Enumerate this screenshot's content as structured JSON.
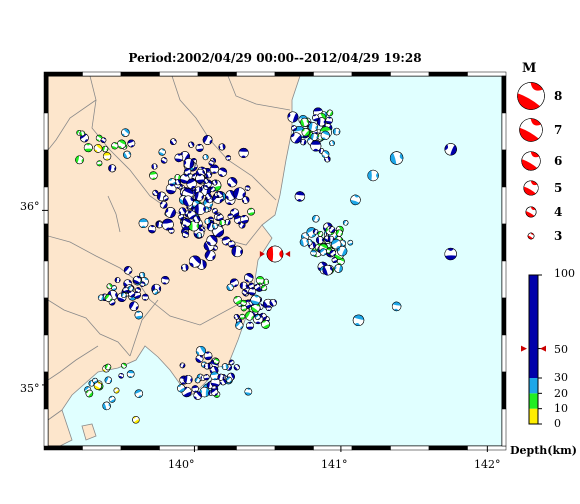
{
  "title": "Period:2002/04/29 00:00--2012/04/29 19:28",
  "x_ticks": [
    "140°",
    "141°",
    "142°"
  ],
  "y_ticks": [
    "36°",
    "35°"
  ],
  "colors": {
    "ocean": "#e0ffff",
    "land": "#fde6cc",
    "boundary": "#8a8a8a",
    "frame": "#000000",
    "mainshock": "#ff0000",
    "depth_0_10": "#ffee00",
    "depth_10_20": "#22ee22",
    "depth_20_30": "#1ea7e8",
    "depth_30_100": "#0000aa"
  },
  "magnitude_legend": {
    "heading": "M",
    "items": [
      {
        "label": "8",
        "m": 8
      },
      {
        "label": "7",
        "m": 7
      },
      {
        "label": "6",
        "m": 6
      },
      {
        "label": "5",
        "m": 5
      },
      {
        "label": "4",
        "m": 4
      },
      {
        "label": "3",
        "m": 3
      }
    ]
  },
  "depth_colorbar": {
    "title": "Depth(km)",
    "ticks": [
      {
        "label": "100",
        "depth": 100
      },
      {
        "label": "50",
        "depth": 50
      },
      {
        "label": "30",
        "depth": 30
      },
      {
        "label": "20",
        "depth": 20
      },
      {
        "label": "10",
        "depth": 10
      },
      {
        "label": "0",
        "depth": 0
      }
    ],
    "marker_depth": 50
  },
  "events": [
    {
      "lon": 140.55,
      "lat": 35.75,
      "m": 5.3,
      "d": 50,
      "main": true
    },
    {
      "lon": 141.75,
      "lat": 36.35,
      "m": 4.4,
      "d": 50
    },
    {
      "lon": 141.75,
      "lat": 35.75,
      "m": 4.4,
      "d": 50
    },
    {
      "lon": 141.38,
      "lat": 36.3,
      "m": 4.6,
      "d": 25
    },
    {
      "lon": 141.22,
      "lat": 36.2,
      "m": 4.2,
      "d": 25
    },
    {
      "lon": 141.12,
      "lat": 35.37,
      "m": 4.2,
      "d": 25
    },
    {
      "lon": 141.38,
      "lat": 35.45,
      "m": 3.8,
      "d": 25
    },
    {
      "lon": 141.1,
      "lat": 36.06,
      "m": 4.0,
      "d": 25
    },
    {
      "lon": 140.72,
      "lat": 36.08,
      "m": 4.0,
      "d": 50
    },
    {
      "lon": 139.72,
      "lat": 36.2,
      "m": 3.6,
      "d": 15
    },
    {
      "lon": 139.62,
      "lat": 35.4,
      "m": 3.6,
      "d": 30
    },
    {
      "lon": 139.8,
      "lat": 35.6,
      "m": 3.6,
      "d": 50
    },
    {
      "lon": 139.62,
      "lat": 34.95,
      "m": 3.6,
      "d": 30
    },
    {
      "lon": 139.4,
      "lat": 34.88,
      "m": 3.6,
      "d": 25
    },
    {
      "lon": 139.6,
      "lat": 34.8,
      "m": 3.4,
      "d": 5
    }
  ],
  "event_clusters": [
    {
      "lon": 140.05,
      "lat": 36.05,
      "rlon": 0.42,
      "rlat": 0.45,
      "n": 150,
      "m": [
        3.0,
        4.4
      ],
      "mix": {
        "d30_100": 0.8,
        "d20_30": 0.15,
        "d10_20": 0.05,
        "d0_10": 0.0
      }
    },
    {
      "lon": 140.85,
      "lat": 36.45,
      "rlon": 0.25,
      "rlat": 0.18,
      "n": 45,
      "m": [
        3.0,
        4.4
      ],
      "mix": {
        "d30_100": 0.55,
        "d20_30": 0.3,
        "d10_20": 0.15,
        "d0_10": 0.0
      }
    },
    {
      "lon": 140.95,
      "lat": 35.78,
      "rlon": 0.24,
      "rlat": 0.2,
      "n": 55,
      "m": [
        3.0,
        4.2
      ],
      "mix": {
        "d30_100": 0.35,
        "d20_30": 0.35,
        "d10_20": 0.3,
        "d0_10": 0.0
      }
    },
    {
      "lon": 140.38,
      "lat": 35.45,
      "rlon": 0.22,
      "rlat": 0.22,
      "n": 40,
      "m": [
        3.0,
        4.0
      ],
      "mix": {
        "d30_100": 0.6,
        "d20_30": 0.25,
        "d10_20": 0.15,
        "d0_10": 0.0
      }
    },
    {
      "lon": 140.1,
      "lat": 35.05,
      "rlon": 0.32,
      "rlat": 0.22,
      "n": 45,
      "m": [
        3.0,
        4.0
      ],
      "mix": {
        "d30_100": 0.75,
        "d20_30": 0.2,
        "d10_20": 0.05,
        "d0_10": 0.0
      }
    },
    {
      "lon": 139.55,
      "lat": 35.55,
      "rlon": 0.3,
      "rlat": 0.15,
      "n": 30,
      "m": [
        3.0,
        4.0
      ],
      "mix": {
        "d30_100": 0.4,
        "d20_30": 0.4,
        "d10_20": 0.2,
        "d0_10": 0.0
      }
    },
    {
      "lon": 139.4,
      "lat": 36.35,
      "rlon": 0.3,
      "rlat": 0.2,
      "n": 18,
      "m": [
        3.0,
        3.8
      ],
      "mix": {
        "d30_100": 0.2,
        "d20_30": 0.2,
        "d10_20": 0.3,
        "d0_10": 0.3
      }
    },
    {
      "lon": 139.4,
      "lat": 35.0,
      "rlon": 0.25,
      "rlat": 0.15,
      "n": 16,
      "m": [
        3.0,
        3.6
      ],
      "mix": {
        "d30_100": 0.2,
        "d20_30": 0.25,
        "d10_20": 0.3,
        "d0_10": 0.25
      }
    }
  ],
  "map_extent": {
    "lon": [
      139.0,
      142.1
    ],
    "lat": [
      34.65,
      36.77
    ]
  }
}
